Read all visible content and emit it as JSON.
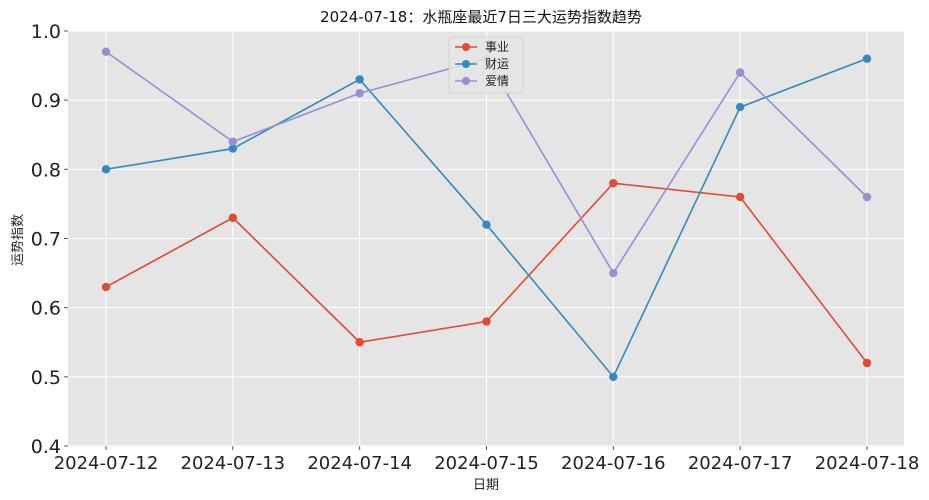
{
  "chart_data": {
    "type": "line",
    "title": "2024-07-18：水瓶座最近7日三大运势指数趋势",
    "xlabel": "日期",
    "ylabel": "运势指数",
    "categories": [
      "2024-07-12",
      "2024-07-13",
      "2024-07-14",
      "2024-07-15",
      "2024-07-16",
      "2024-07-17",
      "2024-07-18"
    ],
    "ylim": [
      0.4,
      1.0
    ],
    "yticks": [
      "0.4",
      "0.5",
      "0.6",
      "0.7",
      "0.8",
      "0.9",
      "1.0"
    ],
    "grid": true,
    "legend_position": "top-center",
    "series": [
      {
        "name": "事业",
        "color": "#E24A33",
        "values": [
          0.63,
          0.73,
          0.55,
          0.58,
          0.78,
          0.76,
          0.52
        ]
      },
      {
        "name": "财运",
        "color": "#348ABD",
        "values": [
          0.8,
          0.83,
          0.93,
          0.72,
          0.5,
          0.89,
          0.96
        ]
      },
      {
        "name": "爱情",
        "color": "#988ED5",
        "values": [
          0.97,
          0.84,
          0.91,
          0.96,
          0.65,
          0.94,
          0.76
        ]
      }
    ]
  }
}
